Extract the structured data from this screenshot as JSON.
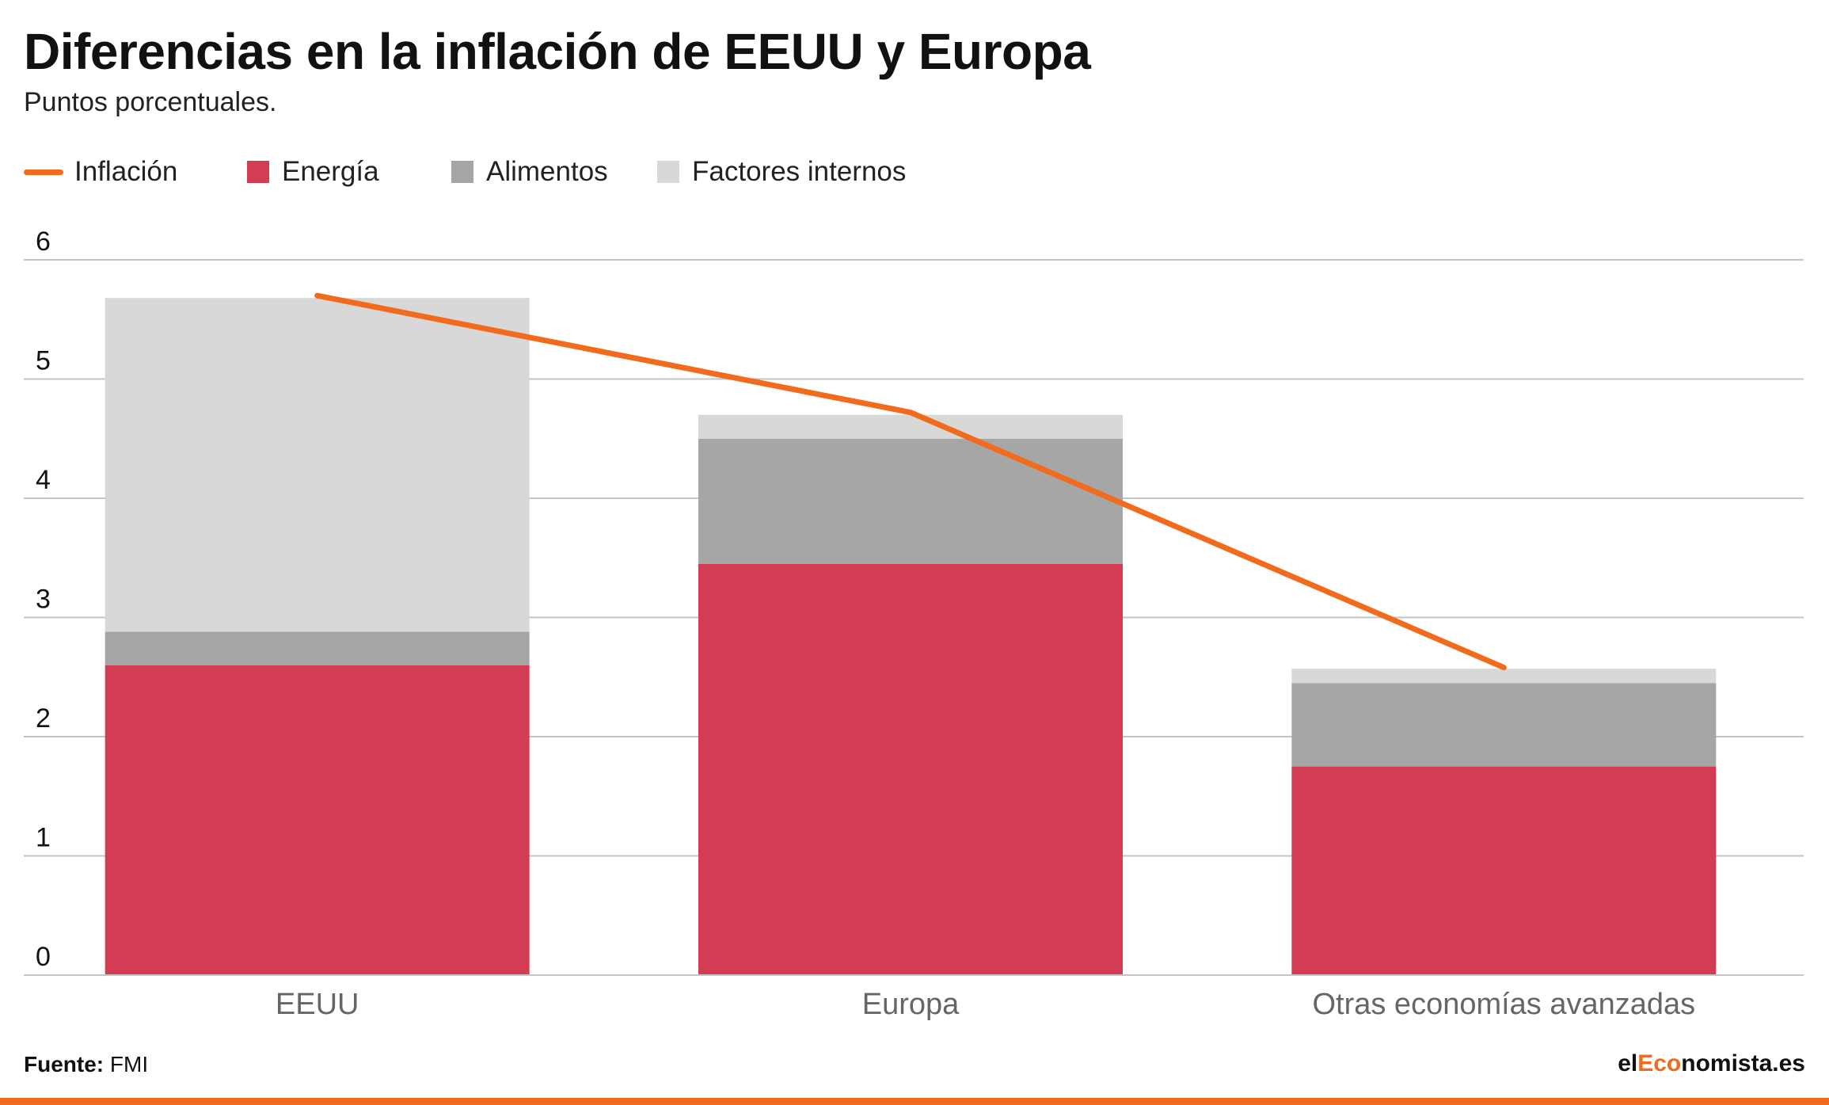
{
  "header": {
    "title": "Diferencias en la inflación de EEUU y Europa",
    "subtitle": "Puntos porcentuales."
  },
  "colors": {
    "inflacion": "#f26a1b",
    "energia": "#d33c53",
    "alimentos": "#a6a6a6",
    "factores_internos": "#d8d8d8",
    "grid": "#c4c4c4",
    "axis_text": "#111111",
    "category_text": "#666666"
  },
  "legend": [
    {
      "label": "Inflación",
      "kind": "line",
      "color": "#f26a1b"
    },
    {
      "label": "Energía",
      "kind": "swatch",
      "color": "#d33c53"
    },
    {
      "label": "Alimentos",
      "kind": "swatch",
      "color": "#a6a6a6"
    },
    {
      "label": "Factores internos",
      "kind": "swatch",
      "color": "#d8d8d8"
    }
  ],
  "chart_data": {
    "type": "bar",
    "stacked": true,
    "categories": [
      "EEUU",
      "Europa",
      "Otras economías avanzadas"
    ],
    "series": [
      {
        "name": "Energía",
        "type": "bar",
        "values": [
          2.6,
          3.45,
          1.75
        ]
      },
      {
        "name": "Alimentos",
        "type": "bar",
        "values": [
          0.28,
          1.05,
          0.7
        ]
      },
      {
        "name": "Factores internos",
        "type": "bar",
        "values": [
          2.8,
          0.2,
          0.12
        ]
      },
      {
        "name": "Inflación",
        "type": "line",
        "values": [
          5.7,
          4.72,
          2.58
        ]
      }
    ],
    "ylim": [
      0,
      6
    ],
    "yticks": [
      0,
      1,
      2,
      3,
      4,
      5,
      6
    ],
    "grid": true,
    "legend_position": "top-left"
  },
  "footer": {
    "source_label": "Fuente:",
    "source_value": " FMI",
    "brand_prefix": "el",
    "brand_accent": "Eco",
    "brand_suffix": "nomista.es"
  }
}
